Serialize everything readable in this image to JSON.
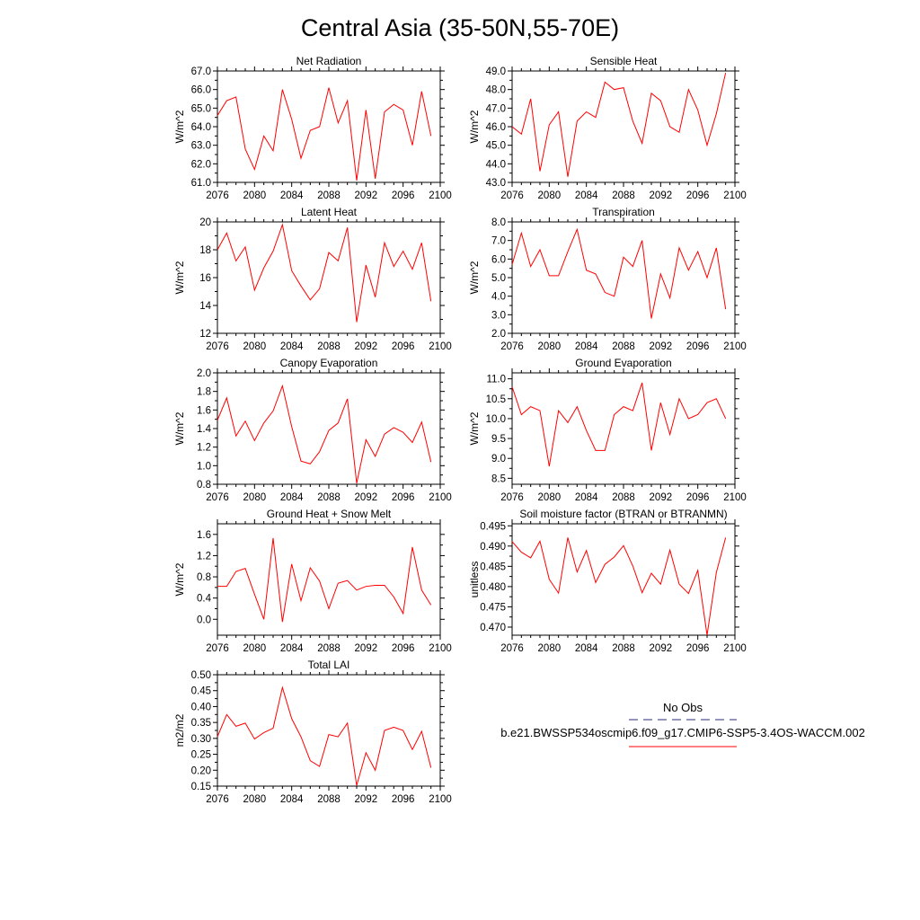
{
  "title": "Central Asia (35-50N,55-70E)",
  "legend": {
    "entries": [
      {
        "label": "No Obs",
        "color": "#2a2a7a",
        "dash": true
      },
      {
        "label": "b.e21.BWSSP534oscmip6.f09_g17.CMIP6-SSP5-3.4OS-WACCM.002",
        "color": "#ff0000",
        "dash": false
      }
    ]
  },
  "chart_data": [
    {
      "type": "line",
      "title": "Net Radiation",
      "ylabel": "W/m^2",
      "xlabel": "",
      "xlim": [
        2076,
        2100
      ],
      "ylim": [
        61.0,
        67.0
      ],
      "xticks": [
        2076,
        2080,
        2084,
        2088,
        2092,
        2096,
        2100
      ],
      "yticks": [
        61.0,
        62.0,
        63.0,
        64.0,
        65.0,
        66.0,
        67.0
      ],
      "ytick_labels": [
        "61.0",
        "62.0",
        "63.0",
        "64.0",
        "65.0",
        "66.0",
        "67.0"
      ],
      "series": [
        {
          "color": "#ff0000",
          "x": [
            2076,
            2077,
            2078,
            2079,
            2080,
            2081,
            2082,
            2083,
            2084,
            2085,
            2086,
            2087,
            2088,
            2089,
            2090,
            2091,
            2092,
            2093,
            2094,
            2095,
            2096,
            2097,
            2098,
            2099
          ],
          "values": [
            64.6,
            65.4,
            65.6,
            62.8,
            61.7,
            63.5,
            62.7,
            66.0,
            64.4,
            62.3,
            63.8,
            64.0,
            66.1,
            64.2,
            65.4,
            61.1,
            64.9,
            61.2,
            64.8,
            65.2,
            64.9,
            63.0,
            65.9,
            63.5
          ]
        }
      ]
    },
    {
      "type": "line",
      "title": "Sensible Heat",
      "ylabel": "W/m^2",
      "xlabel": "",
      "xlim": [
        2076,
        2100
      ],
      "ylim": [
        43.0,
        49.0
      ],
      "xticks": [
        2076,
        2080,
        2084,
        2088,
        2092,
        2096,
        2100
      ],
      "yticks": [
        43.0,
        44.0,
        45.0,
        46.0,
        47.0,
        48.0,
        49.0
      ],
      "ytick_labels": [
        "43.0",
        "44.0",
        "45.0",
        "46.0",
        "47.0",
        "48.0",
        "49.0"
      ],
      "series": [
        {
          "color": "#ff0000",
          "x": [
            2076,
            2077,
            2078,
            2079,
            2080,
            2081,
            2082,
            2083,
            2084,
            2085,
            2086,
            2087,
            2088,
            2089,
            2090,
            2091,
            2092,
            2093,
            2094,
            2095,
            2096,
            2097,
            2098,
            2099
          ],
          "values": [
            46.0,
            45.6,
            47.5,
            43.6,
            46.1,
            46.8,
            43.3,
            46.3,
            46.8,
            46.5,
            48.4,
            48.0,
            48.1,
            46.3,
            45.1,
            47.8,
            47.4,
            46.0,
            45.7,
            48.0,
            46.9,
            45.0,
            46.7,
            48.9
          ]
        }
      ]
    },
    {
      "type": "line",
      "title": "Latent Heat",
      "ylabel": "W/m^2",
      "xlabel": "",
      "xlim": [
        2076,
        2100
      ],
      "ylim": [
        12,
        20
      ],
      "xticks": [
        2076,
        2080,
        2084,
        2088,
        2092,
        2096,
        2100
      ],
      "yticks": [
        12,
        14,
        16,
        18,
        20
      ],
      "ytick_labels": [
        "12",
        "14",
        "16",
        "18",
        "20"
      ],
      "series": [
        {
          "color": "#ff0000",
          "x": [
            2076,
            2077,
            2078,
            2079,
            2080,
            2081,
            2082,
            2083,
            2084,
            2085,
            2086,
            2087,
            2088,
            2089,
            2090,
            2091,
            2092,
            2093,
            2094,
            2095,
            2096,
            2097,
            2098,
            2099
          ],
          "values": [
            18.0,
            19.2,
            17.2,
            18.2,
            15.1,
            16.7,
            17.9,
            19.8,
            16.5,
            15.4,
            14.4,
            15.2,
            17.8,
            17.2,
            19.6,
            12.8,
            16.9,
            14.6,
            18.5,
            16.8,
            17.9,
            16.6,
            18.5,
            14.3
          ]
        }
      ]
    },
    {
      "type": "line",
      "title": "Transpiration",
      "ylabel": "W/m^2",
      "xlabel": "",
      "xlim": [
        2076,
        2100
      ],
      "ylim": [
        2.0,
        8.0
      ],
      "xticks": [
        2076,
        2080,
        2084,
        2088,
        2092,
        2096,
        2100
      ],
      "yticks": [
        2.0,
        3.0,
        4.0,
        5.0,
        6.0,
        7.0,
        8.0
      ],
      "ytick_labels": [
        "2.0",
        "3.0",
        "4.0",
        "5.0",
        "6.0",
        "7.0",
        "8.0"
      ],
      "series": [
        {
          "color": "#ff0000",
          "x": [
            2076,
            2077,
            2078,
            2079,
            2080,
            2081,
            2082,
            2083,
            2084,
            2085,
            2086,
            2087,
            2088,
            2089,
            2090,
            2091,
            2092,
            2093,
            2094,
            2095,
            2096,
            2097,
            2098,
            2099
          ],
          "values": [
            5.7,
            7.4,
            5.6,
            6.5,
            5.1,
            5.1,
            6.4,
            7.6,
            5.4,
            5.2,
            4.2,
            4.0,
            6.1,
            5.6,
            7.0,
            2.8,
            5.2,
            3.9,
            6.6,
            5.4,
            6.4,
            5.0,
            6.6,
            3.3
          ]
        }
      ]
    },
    {
      "type": "line",
      "title": "Canopy Evaporation",
      "ylabel": "W/m^2",
      "xlabel": "",
      "xlim": [
        2076,
        2100
      ],
      "ylim": [
        0.8,
        2.0
      ],
      "xticks": [
        2076,
        2080,
        2084,
        2088,
        2092,
        2096,
        2100
      ],
      "yticks": [
        0.8,
        1.0,
        1.2,
        1.4,
        1.6,
        1.8,
        2.0
      ],
      "ytick_labels": [
        "0.8",
        "1.0",
        "1.2",
        "1.4",
        "1.6",
        "1.8",
        "2.0"
      ],
      "series": [
        {
          "color": "#ff0000",
          "x": [
            2076,
            2077,
            2078,
            2079,
            2080,
            2081,
            2082,
            2083,
            2084,
            2085,
            2086,
            2087,
            2088,
            2089,
            2090,
            2091,
            2092,
            2093,
            2094,
            2095,
            2096,
            2097,
            2098,
            2099
          ],
          "values": [
            1.49,
            1.73,
            1.32,
            1.48,
            1.27,
            1.46,
            1.59,
            1.86,
            1.42,
            1.05,
            1.02,
            1.15,
            1.38,
            1.46,
            1.72,
            0.81,
            1.28,
            1.1,
            1.34,
            1.41,
            1.36,
            1.25,
            1.47,
            1.04
          ]
        }
      ]
    },
    {
      "type": "line",
      "title": "Ground Evaporation",
      "ylabel": "W/m^2",
      "xlabel": "",
      "xlim": [
        2076,
        2100
      ],
      "ylim": [
        8.35,
        11.15
      ],
      "xticks": [
        2076,
        2080,
        2084,
        2088,
        2092,
        2096,
        2100
      ],
      "yticks": [
        8.5,
        9.0,
        9.5,
        10.0,
        10.5,
        11.0
      ],
      "ytick_labels": [
        "8.5",
        "9.0",
        "9.5",
        "10.0",
        "10.5",
        "11.0"
      ],
      "series": [
        {
          "color": "#ff0000",
          "x": [
            2076,
            2077,
            2078,
            2079,
            2080,
            2081,
            2082,
            2083,
            2084,
            2085,
            2086,
            2087,
            2088,
            2089,
            2090,
            2091,
            2092,
            2093,
            2094,
            2095,
            2096,
            2097,
            2098,
            2099
          ],
          "values": [
            10.8,
            10.1,
            10.3,
            10.2,
            8.8,
            10.2,
            9.9,
            10.3,
            9.7,
            9.2,
            9.2,
            10.1,
            10.3,
            10.2,
            10.9,
            9.2,
            10.4,
            9.6,
            10.5,
            10.0,
            10.1,
            10.4,
            10.5,
            10.0
          ]
        }
      ]
    },
    {
      "type": "line",
      "title": "Ground Heat + Snow Melt",
      "ylabel": "W/m^2",
      "xlabel": "",
      "xlim": [
        2076,
        2100
      ],
      "ylim": [
        -0.3,
        1.8
      ],
      "xticks": [
        2076,
        2080,
        2084,
        2088,
        2092,
        2096,
        2100
      ],
      "yticks": [
        0.0,
        0.4,
        0.8,
        1.2,
        1.6
      ],
      "ytick_labels": [
        "0.0",
        "0.4",
        "0.8",
        "1.2",
        "1.6"
      ],
      "series": [
        {
          "color": "#ff0000",
          "x": [
            2076,
            2077,
            2078,
            2079,
            2080,
            2081,
            2082,
            2083,
            2084,
            2085,
            2086,
            2087,
            2088,
            2089,
            2090,
            2091,
            2092,
            2093,
            2094,
            2095,
            2096,
            2097,
            2098,
            2099
          ],
          "values": [
            0.62,
            0.62,
            0.9,
            0.96,
            0.47,
            0.0,
            1.53,
            -0.05,
            1.04,
            0.35,
            0.97,
            0.72,
            0.2,
            0.68,
            0.73,
            0.55,
            0.62,
            0.64,
            0.64,
            0.42,
            0.11,
            1.36,
            0.55,
            0.27
          ]
        }
      ]
    },
    {
      "type": "line",
      "title": "Soil moisture factor (BTRAN or BTRANMN)",
      "ylabel": "unitless",
      "xlabel": "",
      "xlim": [
        2076,
        2100
      ],
      "ylim": [
        0.468,
        0.4955
      ],
      "xticks": [
        2076,
        2080,
        2084,
        2088,
        2092,
        2096,
        2100
      ],
      "yticks": [
        0.47,
        0.475,
        0.48,
        0.485,
        0.49,
        0.495
      ],
      "ytick_labels": [
        "0.470",
        "0.475",
        "0.480",
        "0.485",
        "0.490",
        "0.495"
      ],
      "series": [
        {
          "color": "#ff0000",
          "x": [
            2076,
            2077,
            2078,
            2079,
            2080,
            2081,
            2082,
            2083,
            2084,
            2085,
            2086,
            2087,
            2088,
            2089,
            2090,
            2091,
            2092,
            2093,
            2094,
            2095,
            2096,
            2097,
            2098,
            2099
          ],
          "values": [
            0.4911,
            0.4885,
            0.4871,
            0.4912,
            0.4818,
            0.4784,
            0.4921,
            0.4836,
            0.4889,
            0.481,
            0.4855,
            0.4873,
            0.4901,
            0.4851,
            0.4785,
            0.4833,
            0.4806,
            0.489,
            0.4806,
            0.4783,
            0.484,
            0.468,
            0.4835,
            0.4921
          ]
        }
      ]
    },
    {
      "type": "line",
      "title": "Total LAI",
      "ylabel": "m2/m2",
      "xlabel": "",
      "xlim": [
        2076,
        2100
      ],
      "ylim": [
        0.15,
        0.5
      ],
      "xticks": [
        2076,
        2080,
        2084,
        2088,
        2092,
        2096,
        2100
      ],
      "yticks": [
        0.15,
        0.2,
        0.25,
        0.3,
        0.35,
        0.4,
        0.45,
        0.5
      ],
      "ytick_labels": [
        "0.15",
        "0.20",
        "0.25",
        "0.30",
        "0.35",
        "0.40",
        "0.45",
        "0.50"
      ],
      "series": [
        {
          "color": "#ff0000",
          "x": [
            2076,
            2077,
            2078,
            2079,
            2080,
            2081,
            2082,
            2083,
            2084,
            2085,
            2086,
            2087,
            2088,
            2089,
            2090,
            2091,
            2092,
            2093,
            2094,
            2095,
            2096,
            2097,
            2098,
            2099
          ],
          "values": [
            0.305,
            0.375,
            0.338,
            0.348,
            0.298,
            0.318,
            0.332,
            0.46,
            0.362,
            0.305,
            0.23,
            0.212,
            0.312,
            0.305,
            0.348,
            0.152,
            0.255,
            0.2,
            0.325,
            0.335,
            0.325,
            0.265,
            0.322,
            0.208
          ]
        }
      ]
    }
  ]
}
